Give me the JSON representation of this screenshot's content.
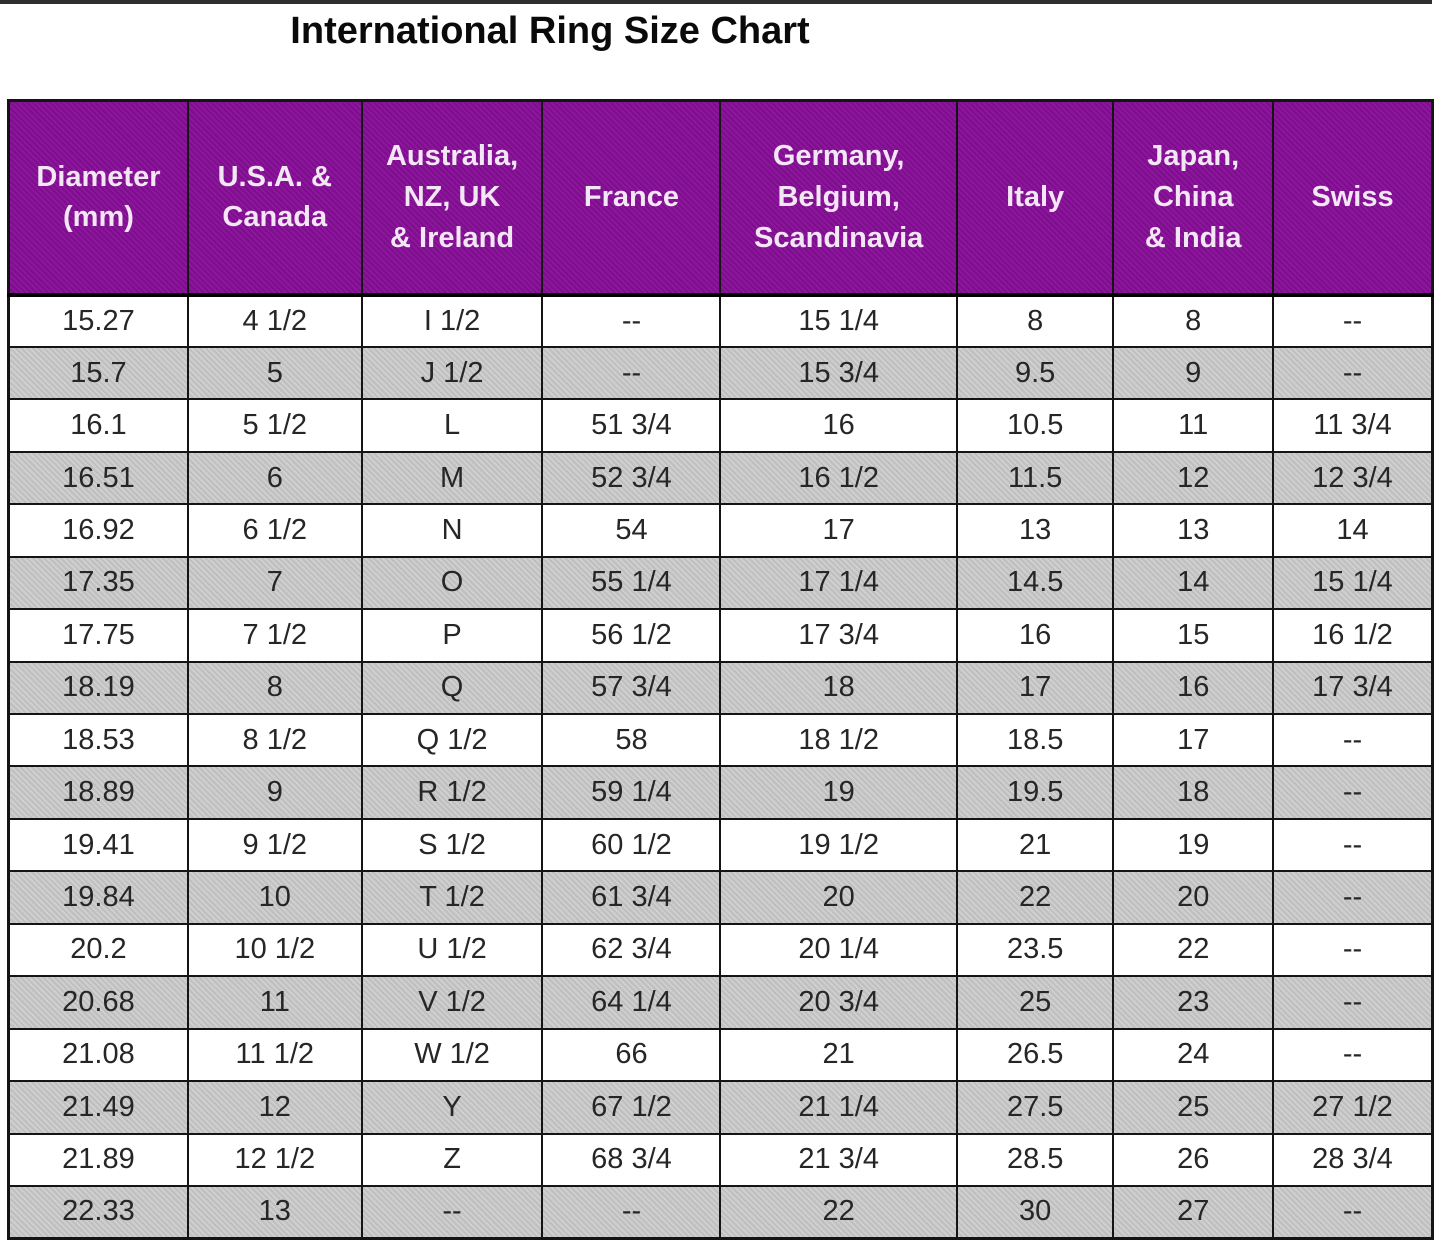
{
  "title": "International Ring Size Chart",
  "chart_data": {
    "type": "table",
    "title": "International Ring Size Chart",
    "columns": [
      "Diameter\n(mm)",
      "U.S.A. &\nCanada",
      "Australia,\nNZ, UK\n& Ireland",
      "France",
      "Germany,\nBelgium,\nScandinavia",
      "Italy",
      "Japan,\nChina\n& India",
      "Swiss"
    ],
    "rows": [
      [
        "15.27",
        "4 1/2",
        "I 1/2",
        "--",
        "15 1/4",
        "8",
        "8",
        "--"
      ],
      [
        "15.7",
        "5",
        "J 1/2",
        "--",
        "15 3/4",
        "9.5",
        "9",
        "--"
      ],
      [
        "16.1",
        "5 1/2",
        "L",
        "51 3/4",
        "16",
        "10.5",
        "11",
        "11 3/4"
      ],
      [
        "16.51",
        "6",
        "M",
        "52 3/4",
        "16 1/2",
        "11.5",
        "12",
        "12 3/4"
      ],
      [
        "16.92",
        "6 1/2",
        "N",
        "54",
        "17",
        "13",
        "13",
        "14"
      ],
      [
        "17.35",
        "7",
        "O",
        "55 1/4",
        "17 1/4",
        "14.5",
        "14",
        "15 1/4"
      ],
      [
        "17.75",
        "7 1/2",
        "P",
        "56 1/2",
        "17 3/4",
        "16",
        "15",
        "16 1/2"
      ],
      [
        "18.19",
        "8",
        "Q",
        "57 3/4",
        "18",
        "17",
        "16",
        "17 3/4"
      ],
      [
        "18.53",
        "8 1/2",
        "Q 1/2",
        "58",
        "18 1/2",
        "18.5",
        "17",
        "--"
      ],
      [
        "18.89",
        "9",
        "R 1/2",
        "59 1/4",
        "19",
        "19.5",
        "18",
        "--"
      ],
      [
        "19.41",
        "9 1/2",
        "S 1/2",
        "60 1/2",
        "19 1/2",
        "21",
        "19",
        "--"
      ],
      [
        "19.84",
        "10",
        "T 1/2",
        "61 3/4",
        "20",
        "22",
        "20",
        "--"
      ],
      [
        "20.2",
        "10 1/2",
        "U 1/2",
        "62 3/4",
        "20 1/4",
        "23.5",
        "22",
        "--"
      ],
      [
        "20.68",
        "11",
        "V 1/2",
        "64 1/4",
        "20 3/4",
        "25",
        "23",
        "--"
      ],
      [
        "21.08",
        "11 1/2",
        "W 1/2",
        "66",
        "21",
        "26.5",
        "24",
        "--"
      ],
      [
        "21.49",
        "12",
        "Y",
        "67 1/2",
        "21 1/4",
        "27.5",
        "25",
        "27 1/2"
      ],
      [
        "21.89",
        "12 1/2",
        "Z",
        "68 3/4",
        "21 3/4",
        "28.5",
        "26",
        "28 3/4"
      ],
      [
        "22.33",
        "13",
        "--",
        "--",
        "22",
        "30",
        "27",
        "--"
      ]
    ],
    "layout": {
      "striping": "alternate rows shaded gray starting with row 2",
      "grid": true
    }
  },
  "colors": {
    "header_bg": "#8d169c",
    "header_bg_alt": "#7d0e8d",
    "shaded_row_bg": "#cfcfcf",
    "shaded_row_bg_alt": "#bfbfbf",
    "border": "#141414",
    "header_text": "#f3e6f5",
    "cell_text": "#262626",
    "title_text": "#0a0a0a"
  }
}
